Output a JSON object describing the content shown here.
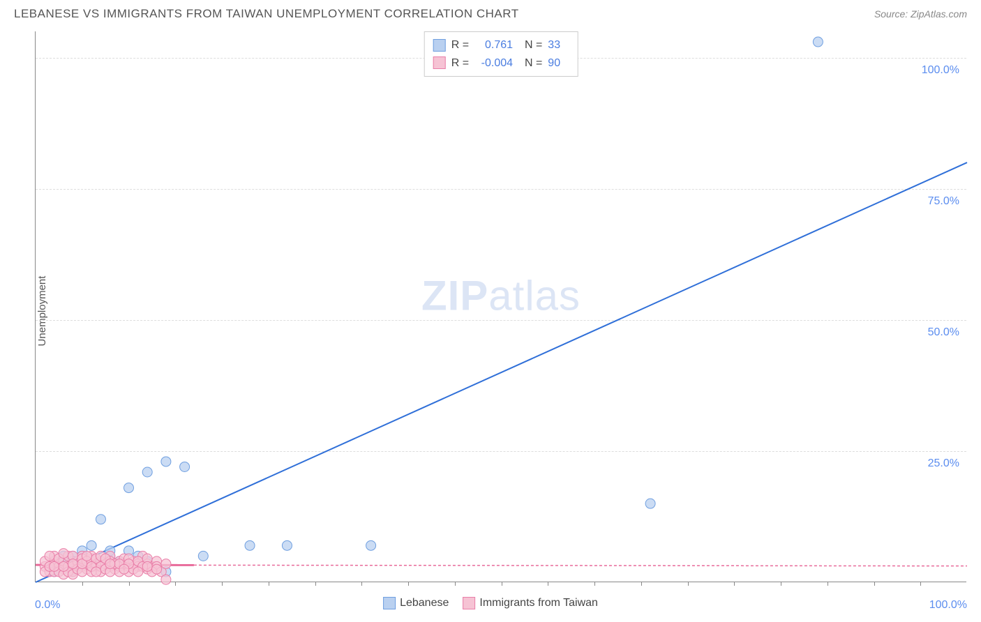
{
  "title": "LEBANESE VS IMMIGRANTS FROM TAIWAN UNEMPLOYMENT CORRELATION CHART",
  "source": "Source: ZipAtlas.com",
  "ylabel": "Unemployment",
  "watermark_bold": "ZIP",
  "watermark_light": "atlas",
  "chart": {
    "type": "scatter",
    "xlim": [
      0,
      100
    ],
    "ylim": [
      0,
      105
    ],
    "x_tick_min": "0.0%",
    "x_tick_max": "100.0%",
    "x_minor_ticks": [
      5,
      10,
      15,
      20,
      25,
      30,
      35,
      40,
      45,
      50,
      55,
      60,
      65,
      70,
      75,
      80,
      85,
      90,
      95
    ],
    "y_ticks": [
      {
        "v": 25,
        "label": "25.0%"
      },
      {
        "v": 50,
        "label": "50.0%"
      },
      {
        "v": 75,
        "label": "75.0%"
      },
      {
        "v": 100,
        "label": "100.0%"
      }
    ],
    "grid_color": "#dddddd",
    "background_color": "#ffffff",
    "series": [
      {
        "name": "Lebanese",
        "marker_fill": "#b9d0f0",
        "marker_stroke": "#6f9fe0",
        "marker_r": 7,
        "line_color": "#2f6fd8",
        "line_dash": "none",
        "line_width": 2,
        "R": "0.761",
        "N": "33",
        "trend": {
          "x1": 0,
          "y1": 0,
          "x2": 100,
          "y2": 80
        },
        "points": [
          [
            84,
            103
          ],
          [
            66,
            15
          ],
          [
            14,
            23
          ],
          [
            16,
            22
          ],
          [
            12,
            21
          ],
          [
            10,
            18
          ],
          [
            7,
            12
          ],
          [
            23,
            7
          ],
          [
            27,
            7
          ],
          [
            36,
            7
          ],
          [
            18,
            5
          ],
          [
            14,
            2
          ],
          [
            5,
            6
          ],
          [
            4,
            5
          ],
          [
            3,
            4
          ],
          [
            2,
            3
          ],
          [
            2,
            4
          ],
          [
            3,
            5
          ],
          [
            6,
            7
          ],
          [
            8,
            5
          ],
          [
            5,
            3
          ],
          [
            7,
            4
          ],
          [
            9,
            4
          ],
          [
            11,
            5
          ],
          [
            4,
            2
          ],
          [
            3,
            3
          ],
          [
            6,
            4
          ],
          [
            5,
            5
          ],
          [
            2,
            2
          ],
          [
            8,
            6
          ],
          [
            10,
            6
          ],
          [
            12,
            4
          ],
          [
            4,
            4
          ]
        ]
      },
      {
        "name": "Immigrants from Taiwan",
        "marker_fill": "#f6c3d4",
        "marker_stroke": "#e97ea8",
        "marker_r": 7,
        "line_color": "#e86a9a",
        "line_dash": "4,3",
        "line_width": 1.5,
        "R": "-0.004",
        "N": "90",
        "trend": {
          "x1": 0,
          "y1": 3.3,
          "x2": 100,
          "y2": 3.1
        },
        "trend_solid_until_x": 17,
        "points": [
          [
            1,
            3
          ],
          [
            1.5,
            2
          ],
          [
            2,
            3.5
          ],
          [
            2,
            4
          ],
          [
            2.5,
            3
          ],
          [
            3,
            2.5
          ],
          [
            3,
            4
          ],
          [
            3.5,
            3
          ],
          [
            3.5,
            5
          ],
          [
            4,
            3
          ],
          [
            4,
            2
          ],
          [
            4.5,
            4
          ],
          [
            5,
            3
          ],
          [
            5,
            5
          ],
          [
            5.5,
            2.5
          ],
          [
            6,
            3.5
          ],
          [
            6,
            4.5
          ],
          [
            6.5,
            3
          ],
          [
            7,
            2
          ],
          [
            7,
            4
          ],
          [
            7.5,
            3.5
          ],
          [
            8,
            3
          ],
          [
            8,
            5
          ],
          [
            8.5,
            2.5
          ],
          [
            9,
            3
          ],
          [
            9,
            4
          ],
          [
            9.5,
            3.5
          ],
          [
            10,
            3
          ],
          [
            10,
            2
          ],
          [
            10.5,
            4
          ],
          [
            11,
            3.5
          ],
          [
            11,
            3
          ],
          [
            11.5,
            5
          ],
          [
            12,
            2.5
          ],
          [
            12,
            3.5
          ],
          [
            12.5,
            3
          ],
          [
            13,
            4
          ],
          [
            13,
            3
          ],
          [
            13.5,
            2
          ],
          [
            14,
            0.5
          ],
          [
            14,
            3.5
          ],
          [
            2,
            5
          ],
          [
            2.5,
            4.5
          ],
          [
            3,
            5.5
          ],
          [
            4,
            5
          ],
          [
            5,
            4.5
          ],
          [
            6,
            5
          ],
          [
            1,
            4
          ],
          [
            1.5,
            5
          ],
          [
            2,
            2
          ],
          [
            2.5,
            2
          ],
          [
            3,
            1.5
          ],
          [
            3.5,
            2
          ],
          [
            4,
            1.5
          ],
          [
            4.5,
            2.5
          ],
          [
            5,
            2
          ],
          [
            5.5,
            4
          ],
          [
            6,
            2
          ],
          [
            6.5,
            4.5
          ],
          [
            7,
            3
          ],
          [
            7.5,
            2.5
          ],
          [
            8,
            4
          ],
          [
            8.5,
            3.5
          ],
          [
            9,
            2
          ],
          [
            9.5,
            4.5
          ],
          [
            10,
            4.5
          ],
          [
            10.5,
            2.5
          ],
          [
            11,
            4
          ],
          [
            11.5,
            3
          ],
          [
            12,
            4.5
          ],
          [
            12.5,
            2
          ],
          [
            1,
            2
          ],
          [
            1.5,
            3
          ],
          [
            2,
            3
          ],
          [
            3,
            3
          ],
          [
            4,
            3.5
          ],
          [
            5,
            3.5
          ],
          [
            6,
            3
          ],
          [
            7,
            5
          ],
          [
            8,
            2
          ],
          [
            9,
            3.5
          ],
          [
            10,
            3.5
          ],
          [
            11,
            2
          ],
          [
            12,
            3
          ],
          [
            13,
            2.5
          ],
          [
            5.5,
            5
          ],
          [
            7.5,
            4.5
          ],
          [
            9.5,
            2.5
          ],
          [
            8,
            3.5
          ],
          [
            6.5,
            2
          ]
        ]
      }
    ]
  },
  "legend_bottom": [
    {
      "label": "Lebanese",
      "fill": "#b9d0f0",
      "stroke": "#6f9fe0"
    },
    {
      "label": "Immigrants from Taiwan",
      "fill": "#f6c3d4",
      "stroke": "#e97ea8"
    }
  ]
}
